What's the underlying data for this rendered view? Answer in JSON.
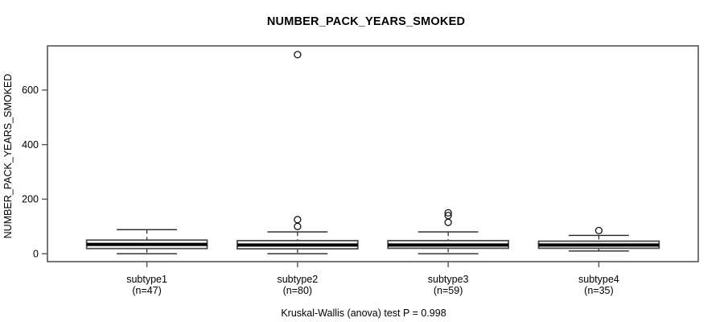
{
  "chart_data": {
    "type": "boxplot",
    "title": "NUMBER_PACK_YEARS_SMOKED",
    "ylabel": "NUMBER_PACK_YEARS_SMOKED",
    "xlabel": "",
    "caption": "Kruskal-Wallis (anova) test P = 0.998",
    "y_ticks": [
      0,
      200,
      400,
      600
    ],
    "y_range": [
      -29,
      762
    ],
    "grid": false,
    "legend": "none",
    "categories": [
      "subtype1",
      "subtype2",
      "subtype3",
      "subtype4"
    ],
    "groups": [
      {
        "label": "subtype1",
        "n_label": "(n=47)",
        "whisker_low": 0,
        "q1": 19,
        "median": 34,
        "q3": 50,
        "whisker_high": 88,
        "outliers": []
      },
      {
        "label": "subtype2",
        "n_label": "(n=80)",
        "whisker_low": 0,
        "q1": 18,
        "median": 32,
        "q3": 48,
        "whisker_high": 80,
        "outliers": [
          100,
          125,
          730
        ]
      },
      {
        "label": "subtype3",
        "n_label": "(n=59)",
        "whisker_low": 0,
        "q1": 20,
        "median": 32,
        "q3": 48,
        "whisker_high": 80,
        "outliers": [
          115,
          140,
          150
        ]
      },
      {
        "label": "subtype4",
        "n_label": "(n=35)",
        "whisker_low": 10,
        "q1": 20,
        "median": 32,
        "q3": 46,
        "whisker_high": 67,
        "outliers": [
          85
        ]
      }
    ],
    "colors": {
      "background": "#ffffff",
      "box_fill": "#ffffff",
      "box_border": "#4d4d4d",
      "frame": "#555555",
      "median": "#000000",
      "whisker": "#222222",
      "outlier": "#111111",
      "text": "#000000"
    }
  }
}
